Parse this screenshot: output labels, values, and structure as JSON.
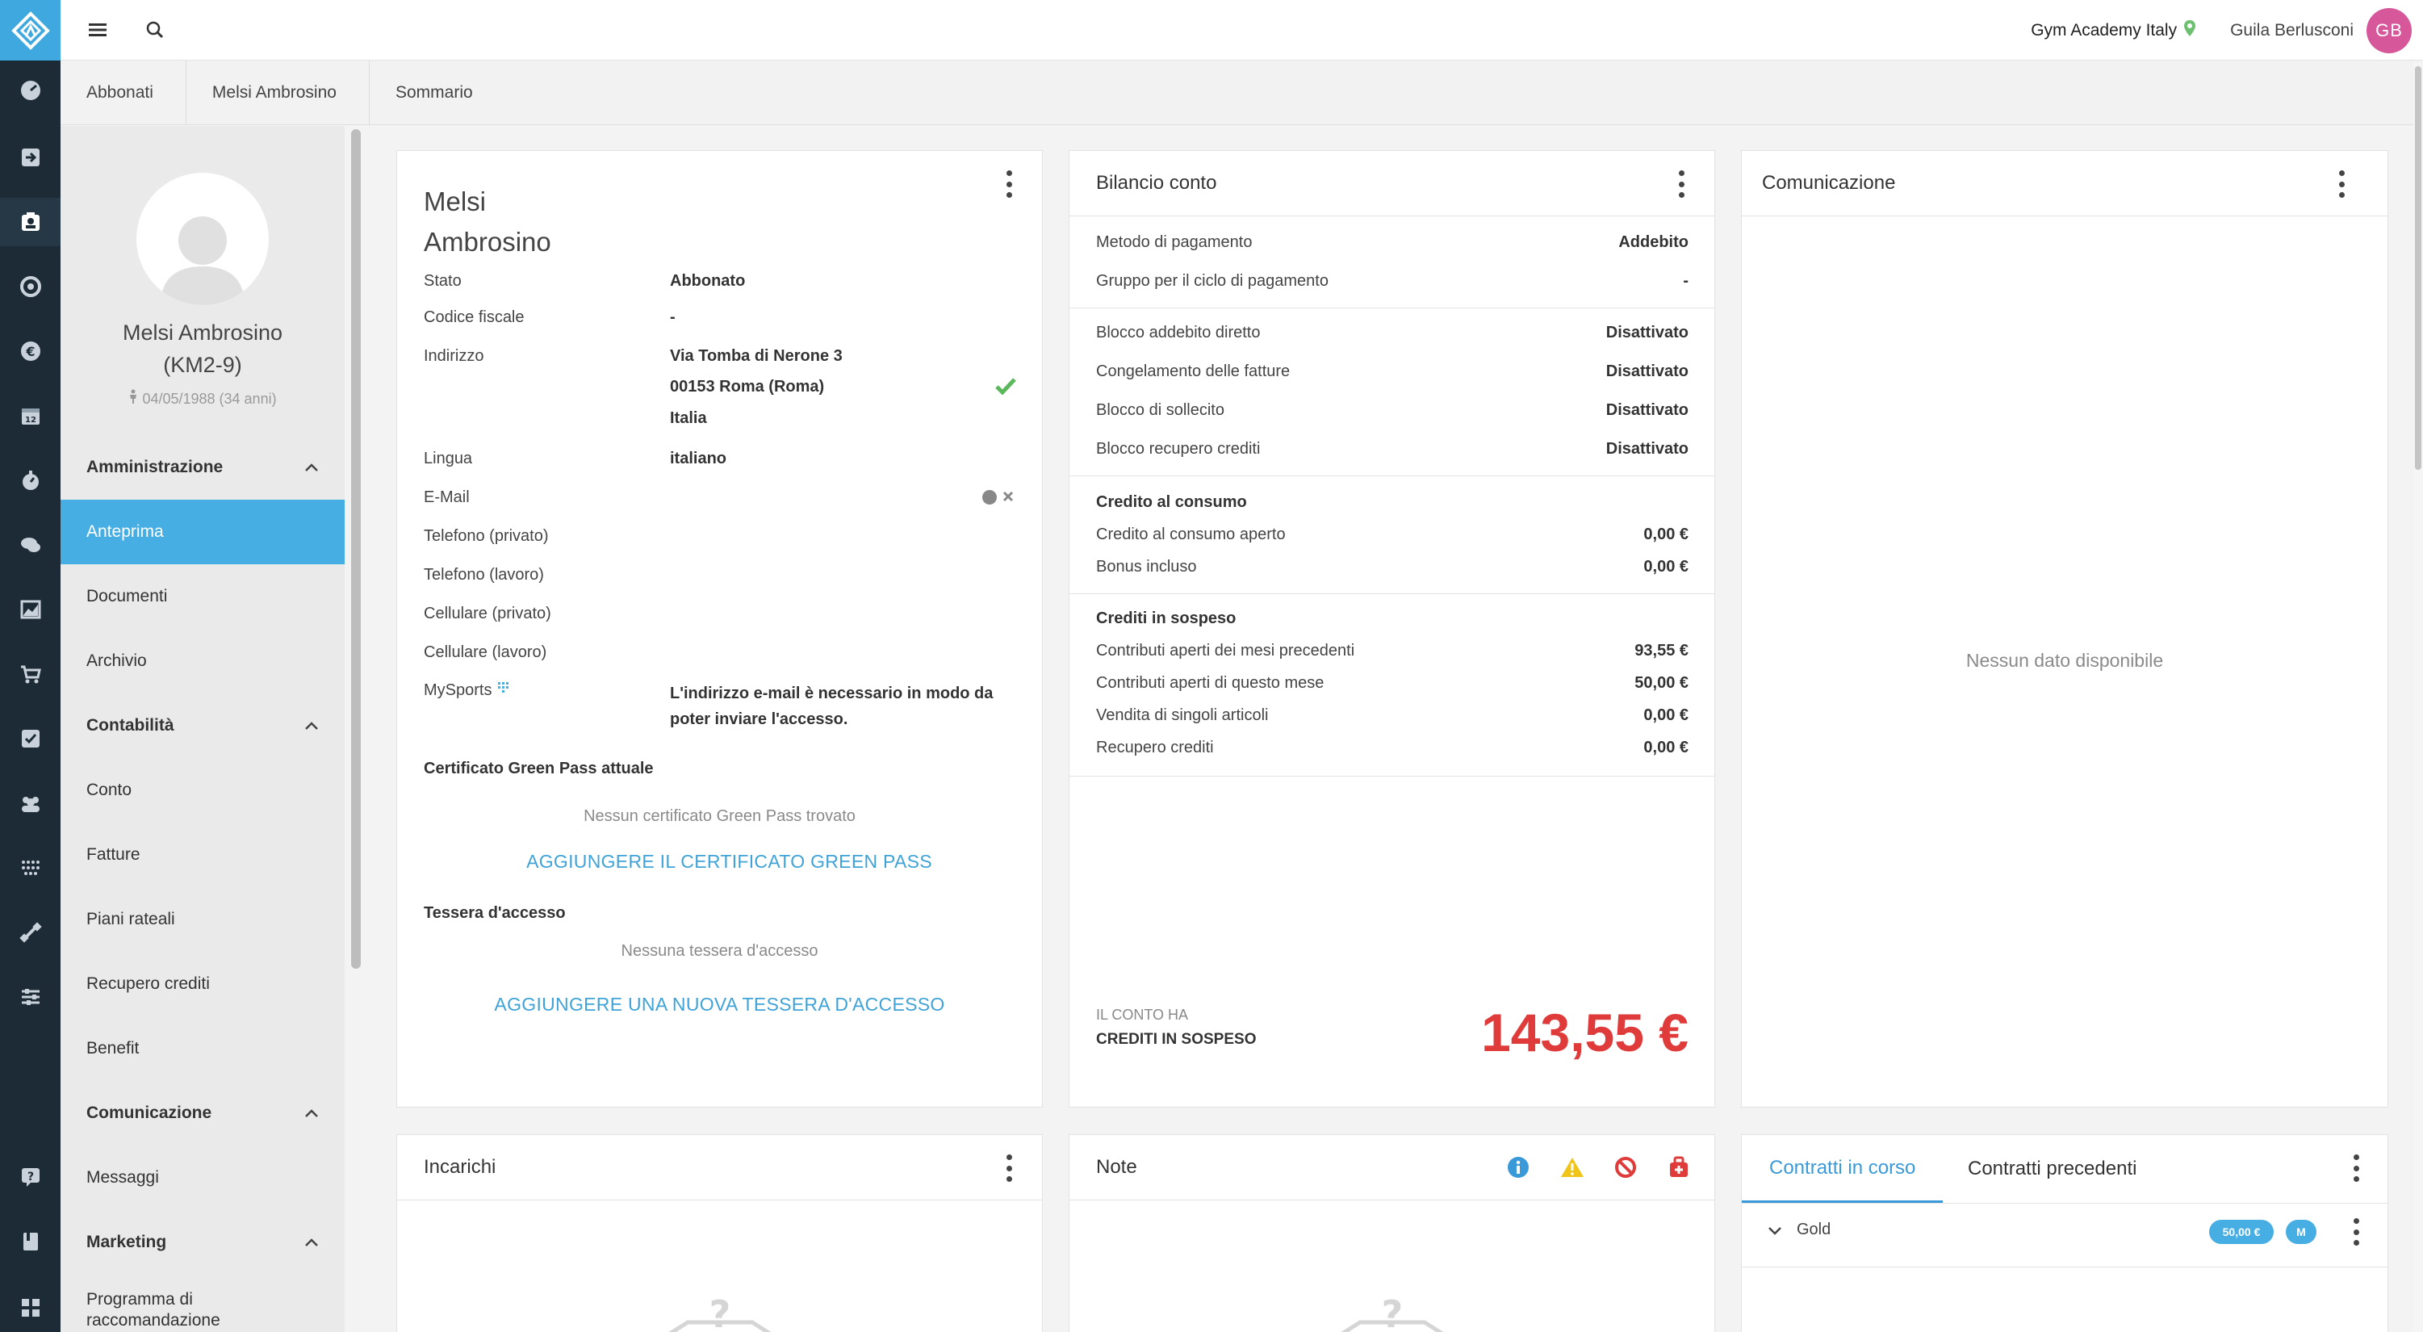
{
  "app": {
    "gym_name": "Gym Academy Italy",
    "user_name": "Guila Berlusconi",
    "user_initials": "GB"
  },
  "breadcrumb": [
    "Abbonati",
    "Melsi Ambrosino",
    "Sommario"
  ],
  "sidebar": {
    "member_name": "Melsi Ambrosino",
    "member_code": "(KM2-9)",
    "member_dob": "04/05/1988 (34 anni)",
    "sections": [
      {
        "title": "Amministrazione",
        "items": [
          "Anteprima",
          "Documenti",
          "Archivio"
        ]
      },
      {
        "title": "Contabilità",
        "items": [
          "Conto",
          "Fatture",
          "Piani rateali",
          "Recupero crediti",
          "Benefit"
        ]
      },
      {
        "title": "Comunicazione",
        "items": [
          "Messaggi"
        ]
      },
      {
        "title": "Marketing",
        "items": [
          "Programma di raccomandazione"
        ]
      }
    ]
  },
  "profile_card": {
    "first_name": "Melsi",
    "last_name": "Ambrosino",
    "fields": [
      {
        "label": "Stato",
        "value": "Abbonato"
      },
      {
        "label": "Codice fiscale",
        "value": "-"
      },
      {
        "label": "Indirizzo",
        "value": "Via Tomba di Nerone 3",
        "value2": "00153 Roma (Roma)",
        "value3": "Italia"
      },
      {
        "label": "Lingua",
        "value": "italiano"
      },
      {
        "label": "E-Mail",
        "value": ""
      },
      {
        "label": "Telefono (privato)",
        "value": ""
      },
      {
        "label": "Telefono (lavoro)",
        "value": ""
      },
      {
        "label": "Cellulare (privato)",
        "value": ""
      },
      {
        "label": "Cellulare (lavoro)",
        "value": ""
      },
      {
        "label": "MySports",
        "value": "L'indirizzo e-mail è necessario in modo da",
        "value2": "poter inviare l'accesso."
      }
    ],
    "greenpass_title": "Certificato Green Pass attuale",
    "greenpass_empty": "Nessun certificato Green Pass trovato",
    "greenpass_add": "AGGIUNGERE IL CERTIFICATO GREEN PASS",
    "card_title": "Tessera d'accesso",
    "card_empty": "Nessuna tessera d'accesso",
    "card_add": "AGGIUNGERE UNA NUOVA TESSERA D'ACCESSO"
  },
  "balance_card": {
    "title": "Bilancio conto",
    "payment": [
      {
        "label": "Metodo di pagamento",
        "value": "Addebito"
      },
      {
        "label": "Gruppo per il ciclo di pagamento",
        "value": "-"
      }
    ],
    "blocks": [
      {
        "label": "Blocco addebito diretto",
        "value": "Disattivato"
      },
      {
        "label": "Congelamento delle fatture",
        "value": "Disattivato"
      },
      {
        "label": "Blocco di sollecito",
        "value": "Disattivato"
      },
      {
        "label": "Blocco recupero crediti",
        "value": "Disattivato"
      }
    ],
    "consumption_title": "Credito al consumo",
    "consumption": [
      {
        "label": "Credito al consumo aperto",
        "value": "0,00 €"
      },
      {
        "label": "Bonus incluso",
        "value": "0,00 €"
      }
    ],
    "pending_title": "Crediti in sospeso",
    "pending": [
      {
        "label": "Contributi aperti dei mesi precedenti",
        "value": "93,55 €"
      },
      {
        "label": "Contributi aperti di questo mese",
        "value": "50,00 €"
      },
      {
        "label": "Vendita di singoli articoli",
        "value": "0,00 €"
      },
      {
        "label": "Recupero crediti",
        "value": "0,00 €"
      }
    ],
    "footer_small": "IL CONTO HA",
    "footer_label": "CREDITI IN SOSPESO",
    "footer_amount": "143,55 €"
  },
  "comm_card": {
    "title": "Comunicazione",
    "empty": "Nessun dato disponibile"
  },
  "tasks_card": {
    "title": "Incarichi"
  },
  "notes_card": {
    "title": "Note"
  },
  "contracts_card": {
    "tab_current": "Contratti in corso",
    "tab_previous": "Contratti precedenti",
    "contract_name": "Gold",
    "contract_price": "50,00 €",
    "contract_badge": "M"
  },
  "colors": {
    "accent": "#46aee2",
    "danger": "#e03b3b",
    "rail": "#1d2b36"
  }
}
